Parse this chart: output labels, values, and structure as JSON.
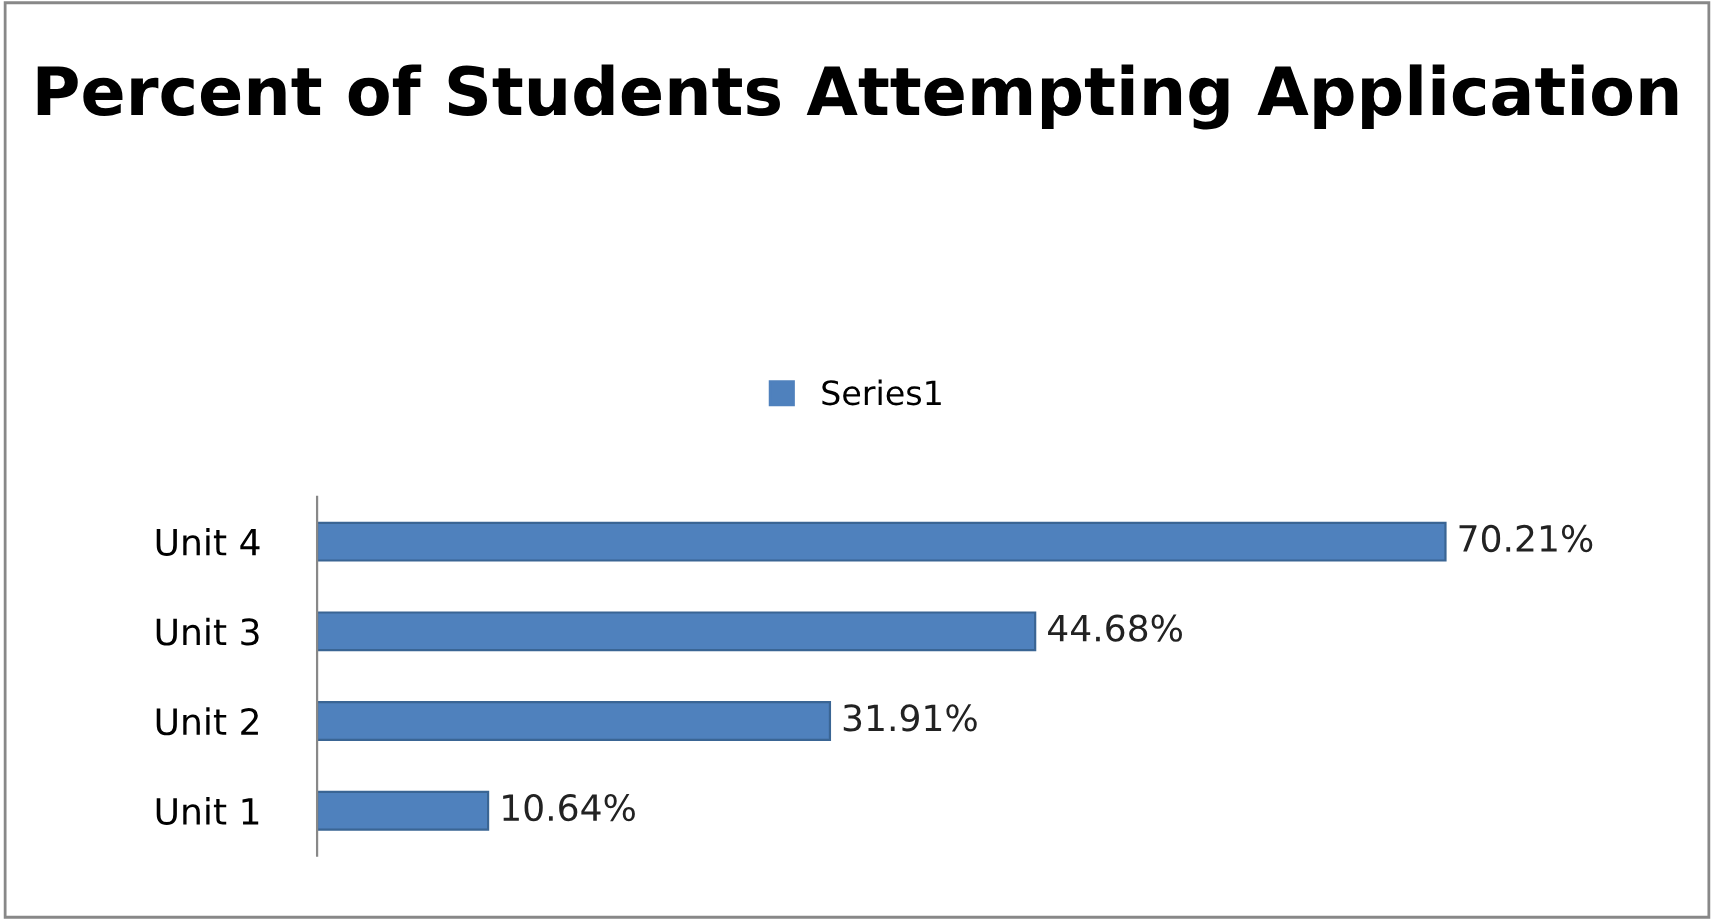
{
  "chart_data": {
    "type": "bar",
    "orientation": "horizontal",
    "title": "Percent of Students Attempting Application",
    "categories": [
      "Unit 4",
      "Unit 3",
      "Unit 2",
      "Unit 1"
    ],
    "series": [
      {
        "name": "Series1",
        "color": "#4f81bd",
        "values": [
          70.21,
          44.68,
          31.91,
          10.64
        ],
        "value_labels": [
          "70.21%",
          "44.68%",
          "31.91%",
          "10.64%"
        ]
      }
    ],
    "legend": "top"
  }
}
